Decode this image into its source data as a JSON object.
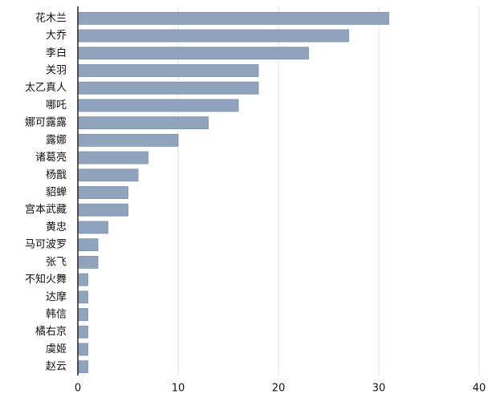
{
  "chart_data": {
    "type": "hbar",
    "categories": [
      "花木兰",
      "大乔",
      "李白",
      "关羽",
      "太乙真人",
      "哪吒",
      "娜可露露",
      "露娜",
      "诸葛亮",
      "杨戬",
      "貂蝉",
      "宫本武藏",
      "黄忠",
      "马可波罗",
      "张飞",
      "不知火舞",
      "达摩",
      "韩信",
      "橘右京",
      "虞姬",
      "赵云"
    ],
    "values": [
      31,
      27,
      23,
      18,
      18,
      16,
      13,
      10,
      7,
      6,
      5,
      5,
      3,
      2,
      2,
      1,
      1,
      1,
      1,
      1,
      1
    ],
    "color": "#8fa3bd",
    "xlim": [
      0,
      40
    ],
    "xticks": [
      0,
      10,
      20,
      30,
      40
    ],
    "grid": true
  }
}
